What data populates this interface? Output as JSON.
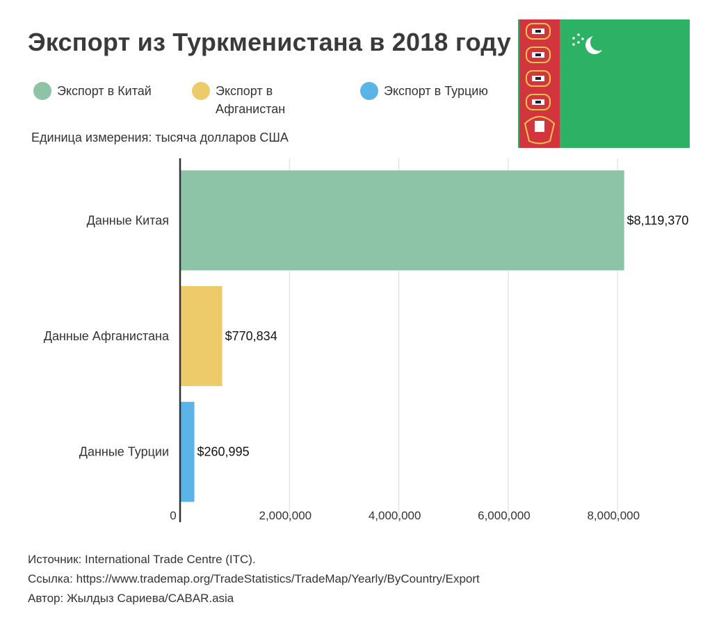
{
  "title": "Экспорт из Туркменистана в 2018 году",
  "legend": [
    {
      "label": "Экспорт в Китай",
      "color": "#8dc3a7"
    },
    {
      "label": "Экспорт в Афганистан",
      "color": "#eecb6a"
    },
    {
      "label": "Экспорт в Турцию",
      "color": "#5ab4e8"
    }
  ],
  "unit": "Единица измерения: тысяча долларов США",
  "chart_data": {
    "type": "bar",
    "orientation": "horizontal",
    "categories": [
      "Данные Китая",
      "Данные Афганистана",
      "Данные Турции"
    ],
    "values": [
      8119370,
      770834,
      260995
    ],
    "value_labels": [
      "$8,119,370",
      "$770,834",
      "$260,995"
    ],
    "colors": [
      "#8dc3a7",
      "#eecb6a",
      "#5ab4e8"
    ],
    "xlim": [
      0,
      8200000
    ],
    "xticks": [
      0,
      2000000,
      4000000,
      6000000,
      8000000
    ],
    "xtick_labels": [
      "0",
      "2,000,000",
      "4,000,000",
      "6,000,000",
      "8,000,000"
    ],
    "grid": true
  },
  "footer": {
    "source": "Источник: International Trade Centre (ITC).",
    "link": "Ссылка: https://www.trademap.org/TradeStatistics/TradeMap/Yearly/ByCountry/Export",
    "author": "Автор: Жылдыз Сариева/CABAR.asia"
  },
  "flag": {
    "field_color": "#2db265",
    "stripe_color": "#d2353d"
  }
}
